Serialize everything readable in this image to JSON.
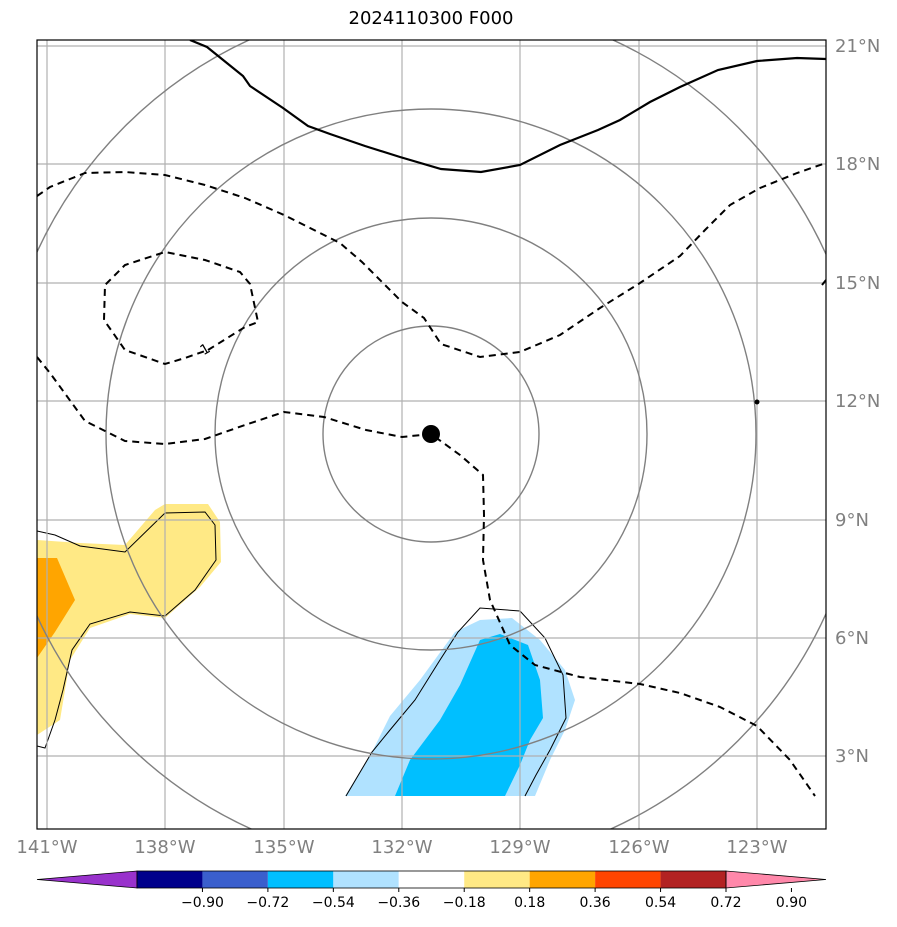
{
  "title": "2024110300 F000",
  "map": {
    "lon_labels": [
      "141°W",
      "138°W",
      "135°W",
      "132°W",
      "129°W",
      "126°W",
      "123°W"
    ],
    "lat_labels": [
      "21°N",
      "18°N",
      "15°N",
      "12°N",
      "9°N",
      "6°N",
      "3°N"
    ],
    "contour_labels": [
      "1"
    ],
    "colors": {
      "range_rings": "#808080",
      "gridlines": "#b0b0b0",
      "contours": "#000000"
    }
  },
  "colorbar": {
    "labels": [
      "−0.90",
      "−0.72",
      "−0.54",
      "−0.36",
      "−0.18",
      "0.18",
      "0.36",
      "0.54",
      "0.72",
      "0.90"
    ],
    "colors": [
      "#9932cc",
      "#00008b",
      "#3a5fcd",
      "#00bfff",
      "#b0e2ff",
      "#ffffff",
      "#ffe985",
      "#ffa500",
      "#ff4500",
      "#b22222",
      "#ff88aa"
    ]
  }
}
